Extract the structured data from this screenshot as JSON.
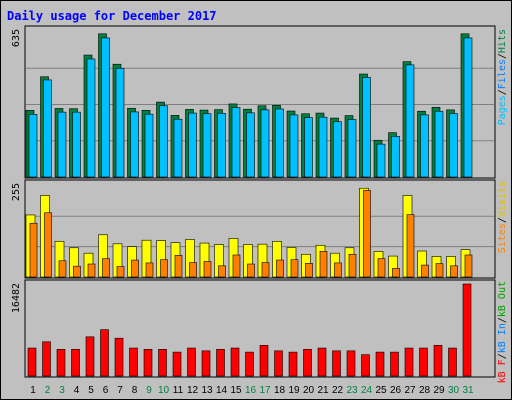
{
  "title": "Daily usage for December 2017",
  "colors": {
    "hits": "#008040",
    "files": "#00c0ff",
    "pages": "#00c0ff",
    "visits": "#ffff00",
    "sites": "#ff8000",
    "kb_in": "#0080ff",
    "kb_out": "#00a000",
    "kb_f": "#ff0000",
    "weekday": "#000000",
    "weekend": "#008040",
    "panel": "#c0c0c0"
  },
  "legend": {
    "top": {
      "pages": "Pages",
      "sep1": "/",
      "files": "Files",
      "sep2": "/",
      "hits": "Hits"
    },
    "middle": {
      "sites": "Sites",
      "sep": "/",
      "visits": "Visits"
    },
    "bottom": {
      "kb_f": "kB F",
      "sep1": "/",
      "kb_in": "kB In",
      "sep2": "/",
      "kb_out": "kB Out"
    }
  },
  "chart_data": [
    {
      "type": "bar",
      "panel": "hits-files",
      "y_label": "635",
      "ylim": [
        0,
        635
      ],
      "categories": [
        "1",
        "2",
        "3",
        "4",
        "5",
        "6",
        "7",
        "8",
        "9",
        "10",
        "11",
        "12",
        "13",
        "14",
        "15",
        "16",
        "17",
        "18",
        "19",
        "20",
        "21",
        "22",
        "23",
        "24",
        "25",
        "26",
        "27",
        "28",
        "29",
        "30",
        "31"
      ],
      "weekend_days": [
        "2",
        "3",
        "9",
        "10",
        "16",
        "17",
        "23",
        "24",
        "30",
        "31"
      ],
      "series": [
        {
          "name": "Hits",
          "values": [
            292,
            439,
            300,
            299,
            534,
            627,
            494,
            301,
            292,
            328,
            270,
            296,
            293,
            295,
            320,
            297,
            312,
            314,
            289,
            277,
            280,
            258,
            269,
            451,
            161,
            194,
            505,
            288,
            305,
            294,
            627
          ]
        },
        {
          "name": "Files",
          "values": [
            274,
            425,
            284,
            284,
            517,
            609,
            476,
            285,
            275,
            312,
            253,
            280,
            277,
            279,
            304,
            281,
            294,
            298,
            272,
            260,
            262,
            242,
            252,
            436,
            144,
            178,
            491,
            272,
            288,
            278,
            609
          ]
        }
      ]
    },
    {
      "type": "bar",
      "panel": "visits-sites",
      "y_label": "255",
      "ylim": [
        0,
        255
      ],
      "categories": [
        "1",
        "2",
        "3",
        "4",
        "5",
        "6",
        "7",
        "8",
        "9",
        "10",
        "11",
        "12",
        "13",
        "14",
        "15",
        "16",
        "17",
        "18",
        "19",
        "20",
        "21",
        "22",
        "23",
        "24",
        "25",
        "26",
        "27",
        "28",
        "29",
        "30",
        "31"
      ],
      "series": [
        {
          "name": "Visits",
          "values": [
            172,
            226,
            99,
            81,
            66,
            117,
            92,
            84,
            102,
            101,
            95,
            104,
            94,
            90,
            107,
            90,
            91,
            99,
            82,
            63,
            88,
            66,
            81,
            246,
            71,
            58,
            226,
            72,
            57,
            57,
            76
          ]
        },
        {
          "name": "Sites",
          "values": [
            149,
            178,
            45,
            30,
            36,
            51,
            29,
            47,
            39,
            48,
            60,
            40,
            43,
            31,
            61,
            36,
            40,
            47,
            48,
            38,
            71,
            39,
            63,
            240,
            51,
            24,
            173,
            33,
            37,
            31,
            61
          ]
        }
      ]
    },
    {
      "type": "bar",
      "panel": "kbytes",
      "y_label": "16482",
      "ylim": [
        0,
        16482
      ],
      "categories": [
        "1",
        "2",
        "3",
        "4",
        "5",
        "6",
        "7",
        "8",
        "9",
        "10",
        "11",
        "12",
        "13",
        "14",
        "15",
        "16",
        "17",
        "18",
        "19",
        "20",
        "21",
        "22",
        "23",
        "24",
        "25",
        "26",
        "27",
        "28",
        "29",
        "30",
        "31"
      ],
      "series": [
        {
          "name": "kB F",
          "values": [
            5006,
            6129,
            4775,
            4775,
            7018,
            8300,
            6771,
            5006,
            4775,
            4775,
            4281,
            5006,
            4507,
            4775,
            5006,
            4281,
            5497,
            4507,
            4281,
            4775,
            5006,
            4507,
            4507,
            3817,
            4281,
            4281,
            5006,
            5006,
            5497,
            5006,
            16482
          ]
        }
      ]
    }
  ]
}
